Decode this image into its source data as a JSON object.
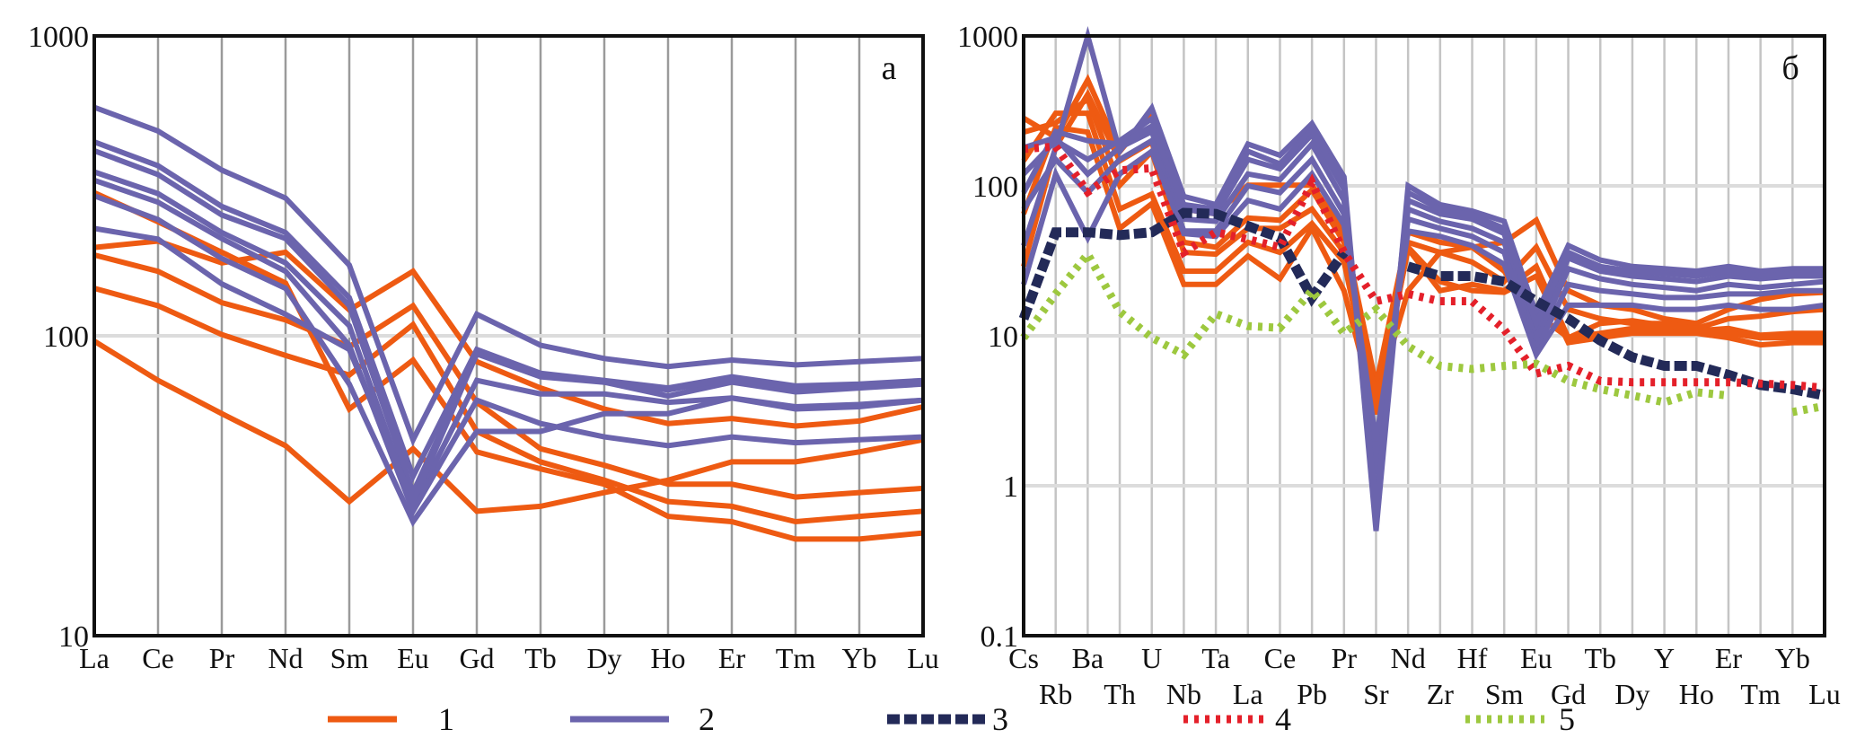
{
  "colors": {
    "group1": "#ee5a12",
    "group2": "#6b64ad",
    "group3": "#232a58",
    "group4": "#e4202a",
    "group5": "#9dc83f"
  },
  "legend": [
    {
      "label": "1",
      "style": "solid",
      "color_key": "group1"
    },
    {
      "label": "2",
      "style": "solid",
      "color_key": "group2"
    },
    {
      "label": "3",
      "style": "dashed",
      "color_key": "group3"
    },
    {
      "label": "4",
      "style": "dotted",
      "color_key": "group4"
    },
    {
      "label": "5",
      "style": "dotted",
      "color_key": "group5"
    }
  ],
  "chart_data": [
    {
      "type": "line",
      "panel_label": "а",
      "yscale": "log",
      "ylim": [
        10,
        1000
      ],
      "yticks": [
        "1000",
        "100",
        "10"
      ],
      "grid": "vertical lines at every element, horizontal at 100",
      "categories": [
        "La",
        "Ce",
        "Pr",
        "Nd",
        "Sm",
        "Eu",
        "Gd",
        "Tb",
        "Dy",
        "Ho",
        "Er",
        "Tm",
        "Yb",
        "Lu"
      ],
      "series": [
        {
          "group": "1",
          "values": [
            197,
            207,
            175,
            190,
            122,
            164,
            82,
            67,
            57,
            51,
            53,
            50,
            52,
            58
          ]
        },
        {
          "group": "1",
          "values": [
            186,
            164,
            129,
            113,
            92,
            126,
            60,
            42,
            37,
            32,
            32,
            29,
            30,
            31
          ]
        },
        {
          "group": "1",
          "values": [
            144,
            126,
            101,
            86,
            74,
            109,
            48,
            38,
            33,
            28,
            27,
            24,
            25,
            26
          ]
        },
        {
          "group": "1",
          "values": [
            300,
            240,
            190,
            150,
            57,
            83,
            41,
            36,
            32,
            25,
            24,
            21,
            21,
            22
          ]
        },
        {
          "group": "1",
          "values": [
            96,
            71,
            55,
            43,
            28,
            42,
            26,
            27,
            30,
            33,
            38,
            38,
            41,
            45
          ]
        },
        {
          "group": "2",
          "values": [
            578,
            482,
            357,
            288,
            172,
            45,
            118,
            93,
            84,
            79,
            83,
            80,
            82,
            84
          ]
        },
        {
          "group": "2",
          "values": [
            443,
            369,
            270,
            221,
            134,
            34,
            90,
            75,
            71,
            67,
            73,
            68,
            69,
            71
          ]
        },
        {
          "group": "2",
          "values": [
            414,
            345,
            253,
            211,
            126,
            30,
            87,
            73,
            70,
            63,
            70,
            65,
            67,
            69
          ]
        },
        {
          "group": "2",
          "values": [
            352,
            298,
            221,
            175,
            108,
            27,
            71,
            64,
            64,
            60,
            62,
            58,
            59,
            61
          ]
        },
        {
          "group": "2",
          "values": [
            330,
            279,
            211,
            164,
            93,
            26,
            61,
            51,
            46,
            43,
            46,
            44,
            45,
            46
          ]
        },
        {
          "group": "2",
          "values": [
            293,
            244,
            181,
            144,
            69,
            24,
            48,
            48,
            55,
            55,
            62,
            57,
            58,
            61
          ]
        },
        {
          "group": "2",
          "values": [
            228,
            210,
            149,
            118,
            90,
            28,
            87,
            74,
            70,
            66,
            72,
            67,
            68,
            70
          ]
        }
      ]
    },
    {
      "type": "line",
      "panel_label": "б",
      "yscale": "log",
      "ylim": [
        0.1,
        1000
      ],
      "yticks": [
        "1000",
        "100",
        "10",
        "1",
        "0.1"
      ],
      "grid": "vertical lines at every element, horizontal at each decade",
      "categories": [
        "Cs",
        "Rb",
        "Ba",
        "Th",
        "U",
        "Nb",
        "Ta",
        "La",
        "Ce",
        "Pb",
        "Pr",
        "Sr",
        "Nd",
        "Zr",
        "Hf",
        "Sm",
        "Eu",
        "Gd",
        "Tb",
        "Dy",
        "Y",
        "Ho",
        "Er",
        "Tm",
        "Yb",
        "Lu"
      ],
      "series": [
        {
          "group": "1",
          "values": [
            283,
            211,
            509,
            169,
            305,
            70,
            65,
            101,
            101,
            101,
            49,
            4.7,
            49,
            42,
            39,
            42,
            59,
            20,
            16,
            15,
            13,
            12.1,
            15,
            17.5,
            19,
            19.5
          ]
        },
        {
          "group": "1",
          "values": [
            228,
            263,
            380,
            101,
            169,
            36,
            35,
            52,
            52,
            70,
            36,
            4.0,
            42,
            36,
            31,
            23,
            39,
            15,
            13,
            12.1,
            12.1,
            11.2,
            13,
            13.5,
            14.5,
            15
          ]
        },
        {
          "group": "1",
          "values": [
            147,
            305,
            305,
            70,
            88,
            27,
            27,
            42,
            36,
            56,
            31,
            3.2,
            38,
            20,
            22,
            20,
            29,
            9.7,
            10.4,
            11.2,
            11.2,
            10.8,
            11.2,
            10.1,
            10.4,
            10.4
          ]
        },
        {
          "group": "1",
          "values": [
            65,
            245,
            228,
            52,
            76,
            22,
            22,
            34,
            24,
            52,
            20,
            3.0,
            39,
            23,
            20,
            19.5,
            25,
            9.0,
            9.7,
            10.4,
            10.4,
            10.4,
            9.7,
            8.7,
            9.0,
            9.0
          ]
        },
        {
          "group": "1",
          "values": [
            29,
            182,
            408,
            147,
            196,
            42,
            39,
            61,
            59,
            94,
            42,
            3.7,
            20,
            36,
            39,
            27,
            14,
            9.7,
            12.1,
            12.6,
            11.7,
            11.2,
            10.4,
            9.7,
            9.7,
            9.7
          ]
        },
        {
          "group": "2",
          "values": [
            40,
            180,
            1000,
            170,
            330,
            85,
            75,
            190,
            160,
            260,
            115,
            0.5,
            100,
            75,
            68,
            58,
            14,
            40,
            32,
            29,
            28,
            27,
            29,
            27,
            28,
            28
          ]
        },
        {
          "group": "2",
          "values": [
            120,
            200,
            150,
            200,
            280,
            70,
            65,
            150,
            130,
            220,
            95,
            0.8,
            80,
            65,
            60,
            48,
            10,
            33,
            27,
            25,
            24,
            23,
            25,
            24,
            25,
            25
          ]
        },
        {
          "group": "2",
          "values": [
            180,
            210,
            120,
            180,
            230,
            60,
            58,
            120,
            110,
            190,
            80,
            1.2,
            70,
            58,
            52,
            42,
            9,
            28,
            24,
            22,
            21,
            20,
            22,
            21,
            22,
            23
          ]
        },
        {
          "group": "2",
          "values": [
            70,
            150,
            90,
            150,
            200,
            50,
            50,
            100,
            90,
            150,
            65,
            1.5,
            60,
            52,
            46,
            36,
            8,
            22,
            20,
            19,
            18,
            18,
            19,
            19,
            20,
            20
          ]
        },
        {
          "group": "2",
          "values": [
            22,
            120,
            45,
            120,
            170,
            48,
            46,
            80,
            70,
            120,
            55,
            2,
            50,
            46,
            40,
            30,
            7.5,
            16,
            16,
            16,
            15,
            15,
            16,
            15,
            15,
            16
          ]
        },
        {
          "group": "2",
          "values": [
            90,
            230,
            200,
            190,
            250,
            75,
            70,
            170,
            140,
            240,
            100,
            0.7,
            90,
            70,
            64,
            52,
            12,
            36,
            29,
            27,
            26,
            25,
            27,
            25,
            26,
            27
          ]
        },
        {
          "group": "3",
          "values": [
            13,
            49,
            49,
            47,
            49,
            66,
            65,
            54,
            45,
            18,
            36,
            null,
            29,
            25,
            25,
            23,
            17,
            13,
            9.3,
            7.2,
            6.3,
            6.3,
            5.5,
            4.7,
            4.4,
            4.0
          ]
        },
        {
          "group": "4",
          "values": [
            176,
            183,
            91,
            127,
            131,
            36,
            49,
            44,
            39,
            105,
            36,
            17,
            19,
            17,
            17,
            11,
            5.6,
            6.3,
            5.0,
            4.9,
            4.9,
            4.9,
            4.9,
            4.8,
            4.7,
            4.5
          ]
        },
        {
          "group": "5",
          "values": [
            9.7,
            19,
            35,
            14.5,
            9.7,
            7.5,
            14,
            11.6,
            11.3,
            20,
            10.4,
            15,
            8.5,
            6.3,
            6.0,
            6.3,
            6.5,
            5.0,
            4.4,
            4.0,
            3.6,
            4.2,
            4.0,
            null,
            3.1,
            3.4
          ]
        }
      ]
    }
  ]
}
